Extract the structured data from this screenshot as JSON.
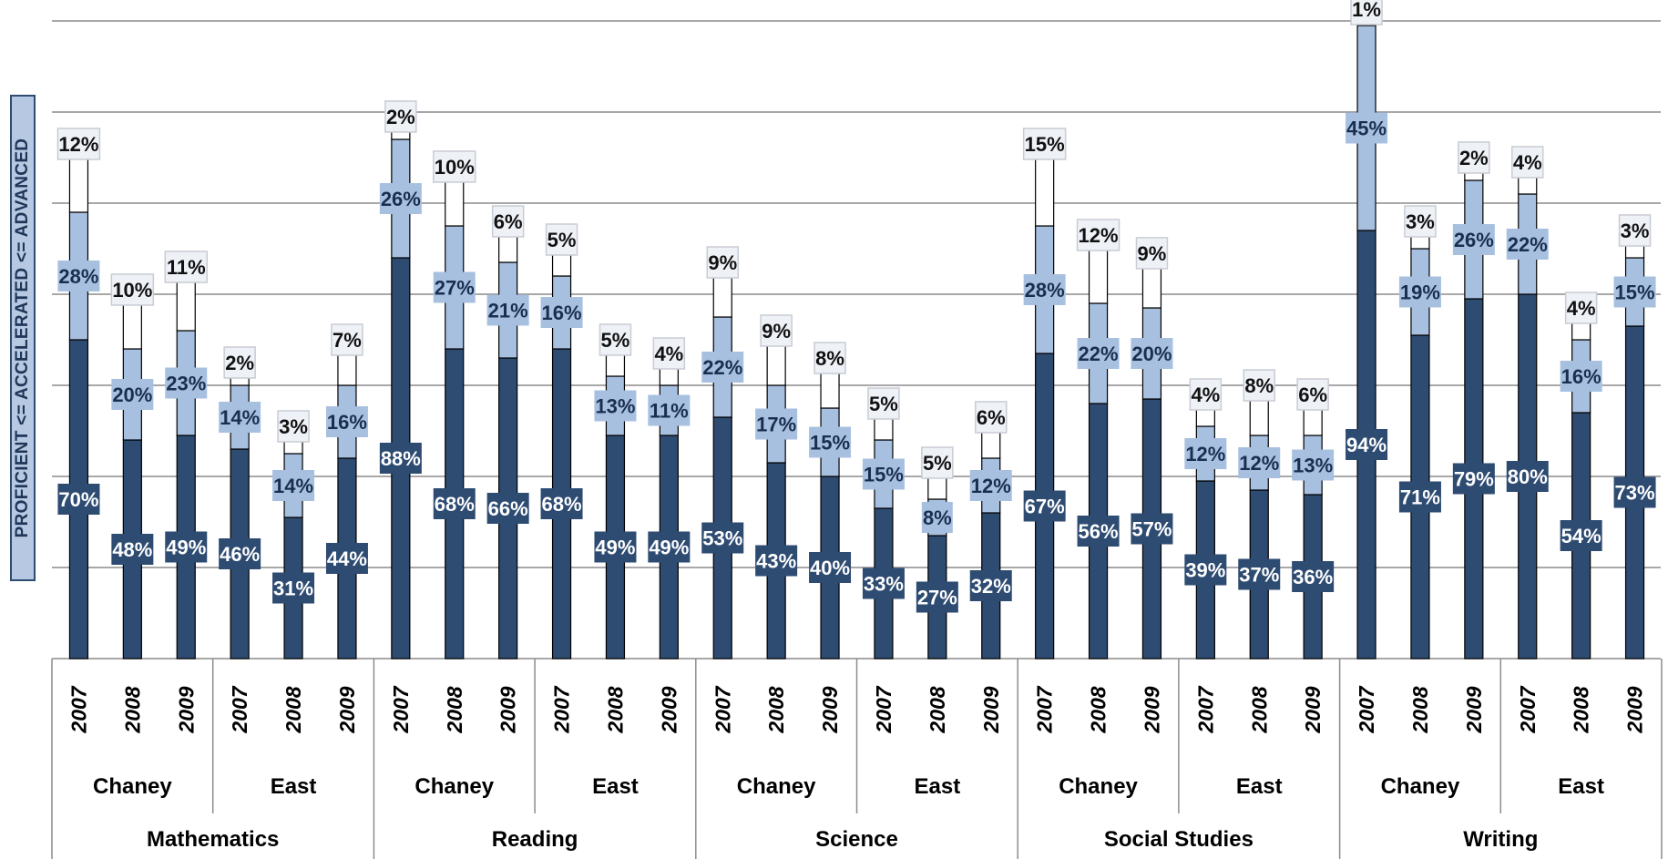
{
  "chart_data": {
    "type": "bar",
    "stacked": true,
    "ylabel": "PROFICIENT <= ACCELERATED <= ADVANCED",
    "ylim": [
      0,
      140
    ],
    "grid": true,
    "legend": "none",
    "colors": {
      "proficient": "#2e4b72",
      "accelerated": "#a8c0e0",
      "advanced": "#ffffff",
      "outline": "#000000",
      "advanced_label_bg": "#eef1f6"
    },
    "groups": [
      {
        "subject": "Mathematics",
        "schools": [
          {
            "school": "Chaney",
            "years": [
              {
                "year": "2007",
                "proficient": 70,
                "accelerated": 28,
                "advanced": 12
              },
              {
                "year": "2008",
                "proficient": 48,
                "accelerated": 20,
                "advanced": 10
              },
              {
                "year": "2009",
                "proficient": 49,
                "accelerated": 23,
                "advanced": 11
              }
            ]
          },
          {
            "school": "East",
            "years": [
              {
                "year": "2007",
                "proficient": 46,
                "accelerated": 14,
                "advanced": 2
              },
              {
                "year": "2008",
                "proficient": 31,
                "accelerated": 14,
                "advanced": 3
              },
              {
                "year": "2009",
                "proficient": 44,
                "accelerated": 16,
                "advanced": 7
              }
            ]
          }
        ]
      },
      {
        "subject": "Reading",
        "schools": [
          {
            "school": "Chaney",
            "years": [
              {
                "year": "2007",
                "proficient": 88,
                "accelerated": 26,
                "advanced": 2
              },
              {
                "year": "2008",
                "proficient": 68,
                "accelerated": 27,
                "advanced": 10
              },
              {
                "year": "2009",
                "proficient": 66,
                "accelerated": 21,
                "advanced": 6
              }
            ]
          },
          {
            "school": "East",
            "years": [
              {
                "year": "2007",
                "proficient": 68,
                "accelerated": 16,
                "advanced": 5
              },
              {
                "year": "2008",
                "proficient": 49,
                "accelerated": 13,
                "advanced": 5
              },
              {
                "year": "2009",
                "proficient": 49,
                "accelerated": 11,
                "advanced": 4
              }
            ]
          }
        ]
      },
      {
        "subject": "Science",
        "schools": [
          {
            "school": "Chaney",
            "years": [
              {
                "year": "2007",
                "proficient": 53,
                "accelerated": 22,
                "advanced": 9
              },
              {
                "year": "2008",
                "proficient": 43,
                "accelerated": 17,
                "advanced": 9
              },
              {
                "year": "2009",
                "proficient": 40,
                "accelerated": 15,
                "advanced": 8
              }
            ]
          },
          {
            "school": "East",
            "years": [
              {
                "year": "2007",
                "proficient": 33,
                "accelerated": 15,
                "advanced": 5
              },
              {
                "year": "2008",
                "proficient": 27,
                "accelerated": 8,
                "advanced": 5
              },
              {
                "year": "2009",
                "proficient": 32,
                "accelerated": 12,
                "advanced": 6
              }
            ]
          }
        ]
      },
      {
        "subject": "Social Studies",
        "schools": [
          {
            "school": "Chaney",
            "years": [
              {
                "year": "2007",
                "proficient": 67,
                "accelerated": 28,
                "advanced": 15
              },
              {
                "year": "2008",
                "proficient": 56,
                "accelerated": 22,
                "advanced": 12
              },
              {
                "year": "2009",
                "proficient": 57,
                "accelerated": 20,
                "advanced": 9
              }
            ]
          },
          {
            "school": "East",
            "years": [
              {
                "year": "2007",
                "proficient": 39,
                "accelerated": 12,
                "advanced": 4
              },
              {
                "year": "2008",
                "proficient": 37,
                "accelerated": 12,
                "advanced": 8
              },
              {
                "year": "2009",
                "proficient": 36,
                "accelerated": 13,
                "advanced": 6
              }
            ]
          }
        ]
      },
      {
        "subject": "Writing",
        "schools": [
          {
            "school": "Chaney",
            "years": [
              {
                "year": "2007",
                "proficient": 94,
                "accelerated": 45,
                "advanced": 1
              },
              {
                "year": "2008",
                "proficient": 71,
                "accelerated": 19,
                "advanced": 3
              },
              {
                "year": "2009",
                "proficient": 79,
                "accelerated": 26,
                "advanced": 2
              }
            ]
          },
          {
            "school": "East",
            "years": [
              {
                "year": "2007",
                "proficient": 80,
                "accelerated": 22,
                "advanced": 4
              },
              {
                "year": "2008",
                "proficient": 54,
                "accelerated": 16,
                "advanced": 4
              },
              {
                "year": "2009",
                "proficient": 73,
                "accelerated": 15,
                "advanced": 3
              }
            ]
          }
        ]
      }
    ]
  }
}
